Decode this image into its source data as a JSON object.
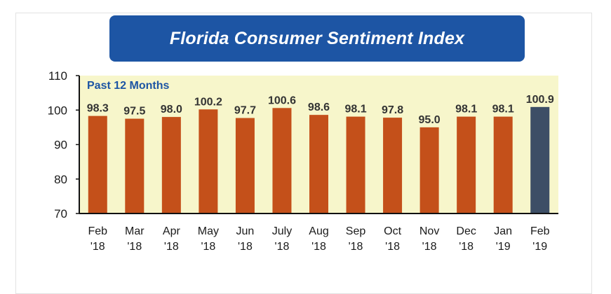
{
  "chart_data": {
    "type": "bar",
    "title": "Florida Consumer Sentiment Index",
    "subtitle": "Past 12 Months",
    "categories": [
      [
        "Feb",
        "'18"
      ],
      [
        "Mar",
        "'18"
      ],
      [
        "Apr",
        "'18"
      ],
      [
        "May",
        "'18"
      ],
      [
        "Jun",
        "'18"
      ],
      [
        "July",
        "'18"
      ],
      [
        "Aug",
        "'18"
      ],
      [
        "Sep",
        "'18"
      ],
      [
        "Oct",
        "'18"
      ],
      [
        "Nov",
        "'18"
      ],
      [
        "Dec",
        "'18"
      ],
      [
        "Jan",
        "'19"
      ],
      [
        "Feb",
        "'19"
      ]
    ],
    "values": [
      98.3,
      97.5,
      98.0,
      100.2,
      97.7,
      100.6,
      98.6,
      98.1,
      97.8,
      95.0,
      98.1,
      98.1,
      100.9
    ],
    "value_labels": [
      "98.3",
      "97.5",
      "98.0",
      "100.2",
      "97.7",
      "100.6",
      "98.6",
      "98.1",
      "97.8",
      "95.0",
      "98.1",
      "98.1",
      "100.9"
    ],
    "ylim": [
      70,
      110
    ],
    "yticks": [
      "70",
      "80",
      "90",
      "100",
      "110"
    ],
    "xlabel": "",
    "ylabel": "",
    "grid": false,
    "colors": {
      "bar": "#c4501a",
      "highlight_bar": "#3d4e66",
      "plot_background": "#f7f6cb",
      "title_banner": "#1d55a4"
    },
    "highlight_index": 12
  }
}
